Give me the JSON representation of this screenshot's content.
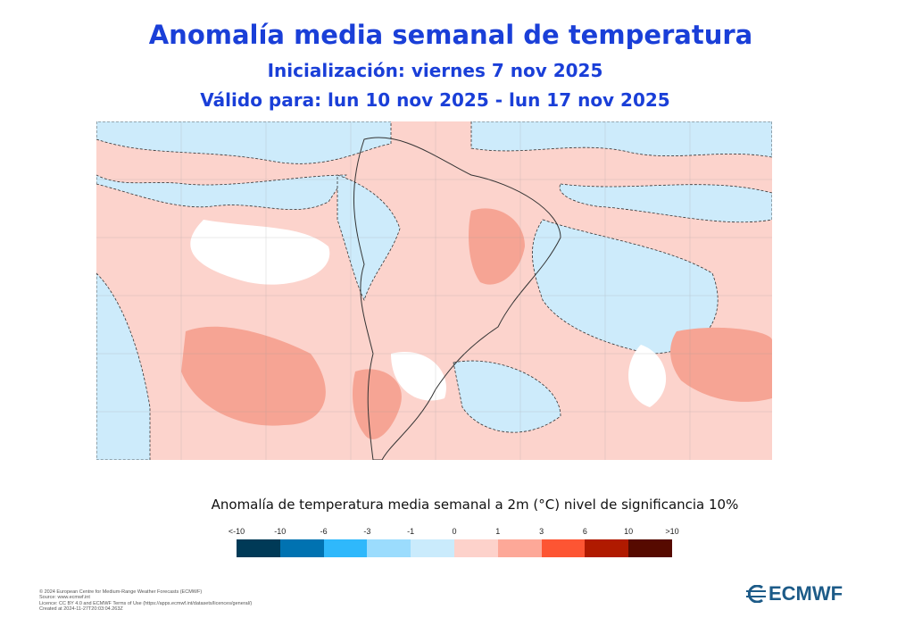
{
  "header": {
    "title": "Anomalía  media semanal de temperatura",
    "init": "Inicialización: viernes 7 nov 2025",
    "valid": "Válido para: lun 10 nov 2025 - lun 17  nov 2025"
  },
  "colorbar": {
    "title": "Anomalía de temperatura media semanal a 2m (°C) nivel de significancia 10%",
    "labels": [
      "<-10",
      "-10",
      "-6",
      "-3",
      "-1",
      "0",
      "1",
      "3",
      "6",
      "10",
      ">10"
    ],
    "colors": [
      "#003a57",
      "#0072b1",
      "#2fb8fb",
      "#9bdcfd",
      "#caebfc",
      "#fdd2cb",
      "#fda898",
      "#fd5533",
      "#b01a00",
      "#560a00"
    ]
  },
  "map": {
    "colors": {
      "background": "#fcd3cc",
      "cold": "#cdebfb",
      "cold_mid": "#9fdcfc",
      "neutral": "#ffffff",
      "warm_mid": "#f6a494"
    }
  },
  "footer": {
    "lines": [
      "© 2024 European Centre for Medium-Range Weather Forecasts (ECMWF)",
      "Source: www.ecmwf.int",
      "Licence: CC BY 4.0 and ECMWF Terms of Use (https://apps.ecmwf.int/datasets/licences/general/)",
      "Created at 2024-11-27T20:03:04.263Z"
    ],
    "logo_text": "ECMWF"
  }
}
